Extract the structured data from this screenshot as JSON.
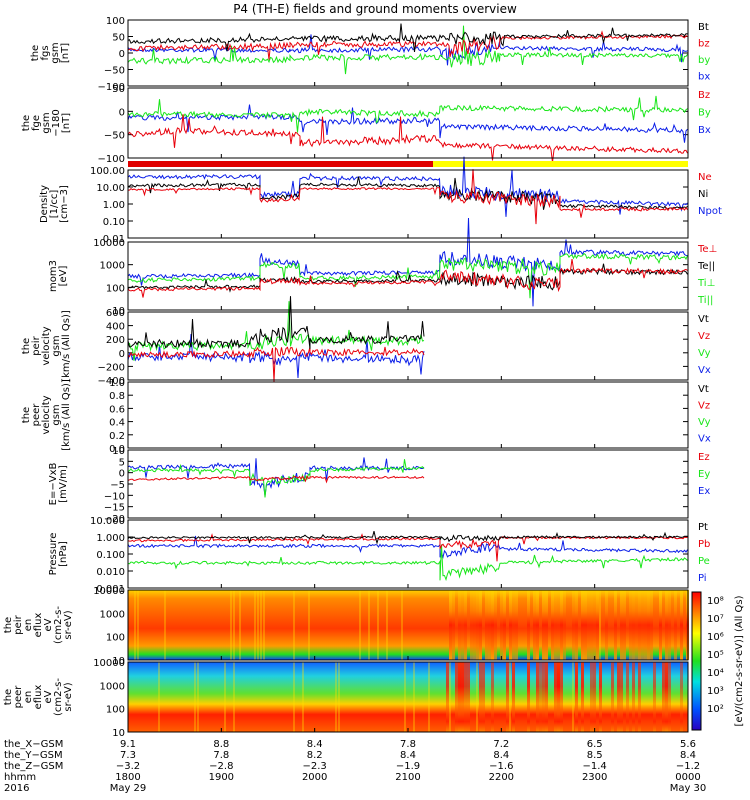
{
  "title": "P4 (TH-E) fields and ground moments overview",
  "colors": {
    "black": "#000000",
    "red": "#e8000b",
    "green": "#19e619",
    "blue": "#0b1ee8",
    "yellow": "#ffff00"
  },
  "panels": [
    {
      "id": "p1",
      "ylabel": [
        "the",
        "fgs",
        "gsm",
        "[nT]"
      ],
      "ticks": [
        "100",
        "50",
        "0",
        "−50",
        "−100"
      ],
      "legend": [
        {
          "t": "Bt",
          "c": "black"
        },
        {
          "t": "bz",
          "c": "red"
        },
        {
          "t": "by",
          "c": "green"
        },
        {
          "t": "bx",
          "c": "blue"
        }
      ]
    },
    {
      "id": "p2",
      "ylabel": [
        "the",
        "fge",
        "gsm",
        "−180",
        "[nT]"
      ],
      "ticks": [
        "50",
        "0",
        "−50",
        "−100"
      ],
      "legend": [
        {
          "t": "Bz",
          "c": "red"
        },
        {
          "t": "By",
          "c": "green"
        },
        {
          "t": "Bx",
          "c": "blue"
        }
      ]
    },
    {
      "id": "p3",
      "ylabel": [
        "Density",
        "[1/cc]",
        "[cm−3]"
      ],
      "ticks": [
        "100.00",
        "10.00",
        "1.00",
        "0.10",
        "0.01"
      ],
      "legend": [
        {
          "t": "Ne",
          "c": "red"
        },
        {
          "t": "Ni",
          "c": "black"
        },
        {
          "t": "Npot",
          "c": "blue"
        }
      ]
    },
    {
      "id": "p4",
      "ylabel": [
        "mom3",
        "[eV]"
      ],
      "ticks": [
        "10000",
        "1000",
        "100",
        "10"
      ],
      "legend": [
        {
          "t": "Te⊥",
          "c": "red"
        },
        {
          "t": "Te||",
          "c": "black"
        },
        {
          "t": "Ti⊥",
          "c": "green"
        },
        {
          "t": "Ti||",
          "c": "green"
        }
      ]
    },
    {
      "id": "p5",
      "ylabel": [
        "the",
        "peir",
        "velocity",
        "gsm",
        "[km/s (All Qs)]"
      ],
      "ticks": [
        "600",
        "400",
        "200",
        "0",
        "−200",
        "−400"
      ],
      "legend": [
        {
          "t": "Vt",
          "c": "black"
        },
        {
          "t": "Vz",
          "c": "red"
        },
        {
          "t": "Vy",
          "c": "green"
        },
        {
          "t": "Vx",
          "c": "blue"
        }
      ]
    },
    {
      "id": "p6",
      "ylabel": [
        "the",
        "peer",
        "velocity",
        "gsm",
        "[km/s (All Qs)]"
      ],
      "ticks": [
        "1.0",
        "0.8",
        "0.6",
        "0.4",
        "0.2",
        "0.0"
      ],
      "legend": [
        {
          "t": "Vt",
          "c": "black"
        },
        {
          "t": "Vz",
          "c": "red"
        },
        {
          "t": "Vy",
          "c": "green"
        },
        {
          "t": "Vx",
          "c": "blue"
        }
      ]
    },
    {
      "id": "p7",
      "ylabel": [
        "E=−VxB",
        "[mV/m]"
      ],
      "ticks": [
        "10",
        "5",
        "0",
        "−5",
        "−10",
        "−15",
        "−20"
      ],
      "legend": [
        {
          "t": "Ez",
          "c": "red"
        },
        {
          "t": "Ey",
          "c": "green"
        },
        {
          "t": "Ex",
          "c": "blue"
        }
      ]
    },
    {
      "id": "p8",
      "ylabel": [
        "Pressure",
        "[nPa]"
      ],
      "ticks": [
        "10.000",
        "1.000",
        "0.100",
        "0.010",
        "0.001"
      ],
      "legend": [
        {
          "t": "Pt",
          "c": "black"
        },
        {
          "t": "Pb",
          "c": "red"
        },
        {
          "t": "Pe",
          "c": "green"
        },
        {
          "t": "Pi",
          "c": "blue"
        }
      ]
    },
    {
      "id": "p9",
      "ylabel": [
        "the",
        "peir",
        "en",
        "eflux",
        "eV",
        "(cm2-s-",
        "sr-eV)"
      ],
      "ticks": [
        "10000",
        "1000",
        "100",
        "10"
      ],
      "legend": []
    },
    {
      "id": "p10",
      "ylabel": [
        "the",
        "peer",
        "en",
        "eflux",
        "eV",
        "(cm2-s-",
        "sr-eV)"
      ],
      "ticks": [
        "10000",
        "1000",
        "100",
        "10"
      ],
      "legend": []
    }
  ],
  "colorbar": {
    "label": "[eV/(cm2-s-sr-eV)] (All Qs)",
    "ticks": [
      "10⁸",
      "10⁷",
      "10⁶",
      "10⁵",
      "10⁴",
      "10³",
      "10²"
    ]
  },
  "footer": {
    "rows": [
      {
        "label": "the_X−GSM",
        "values": [
          "9.1",
          "8.8",
          "8.4",
          "7.8",
          "7.2",
          "6.5",
          "5.6"
        ]
      },
      {
        "label": "the_Y−GSM",
        "values": [
          "7.3",
          "7.8",
          "8.2",
          "8.4",
          "8.4",
          "8.5",
          "8.4"
        ]
      },
      {
        "label": "the_Z−GSM",
        "values": [
          "−3.2",
          "−2.8",
          "−2.3",
          "−1.9",
          "−1.6",
          "−1.4",
          "−1.2"
        ]
      },
      {
        "label": "hhmm",
        "values": [
          "1800",
          "1900",
          "2000",
          "2100",
          "2200",
          "2300",
          "0000"
        ]
      }
    ],
    "year": "2016",
    "date_start": "May 29",
    "date_end": "May 30"
  },
  "chart_data": {
    "type": "line",
    "title": "P4 (TH-E) fields and ground moments overview",
    "x_times": [
      "1800",
      "1900",
      "2000",
      "2100",
      "2200",
      "2300",
      "0000"
    ],
    "panels": [
      {
        "name": "the fgs gsm",
        "ylim": [
          -100,
          100
        ],
        "series": [
          {
            "name": "Bt",
            "values": [
              35,
              40,
              45,
              42,
              38,
              50,
              55
            ]
          },
          {
            "name": "bz",
            "values": [
              15,
              20,
              28,
              30,
              20,
              45,
              50
            ]
          },
          {
            "name": "by",
            "values": [
              -20,
              -25,
              -20,
              -15,
              -20,
              -10,
              -5
            ]
          },
          {
            "name": "bx",
            "values": [
              10,
              15,
              10,
              5,
              10,
              12,
              8
            ]
          }
        ]
      },
      {
        "name": "the fge gsm -180",
        "ylim": [
          -120,
          50
        ],
        "series": [
          {
            "name": "Bz",
            "values": [
              -55,
              -50,
              -65,
              -60,
              -80,
              -90,
              -95
            ]
          },
          {
            "name": "By",
            "values": [
              -5,
              -10,
              0,
              -10,
              10,
              15,
              10
            ]
          },
          {
            "name": "Bx",
            "values": [
              -15,
              -10,
              -20,
              -15,
              -30,
              -40,
              -45
            ]
          }
        ]
      },
      {
        "name": "Density",
        "ylim": [
          0.01,
          100
        ],
        "log": true,
        "series": [
          {
            "name": "Ne",
            "values": [
              8,
              8,
              2,
              8,
              2,
              0.5,
              0.5
            ]
          },
          {
            "name": "Ni",
            "values": [
              15,
              15,
              3,
              12,
              5,
              0.8,
              0.7
            ]
          },
          {
            "name": "Npot",
            "values": [
              40,
              40,
              5,
              30,
              8,
              1.5,
              0.9
            ]
          }
        ]
      },
      {
        "name": "mom3",
        "ylim": [
          10,
          10000
        ],
        "log": true,
        "series": [
          {
            "name": "Te⊥",
            "values": [
              120,
              130,
              250,
              200,
              300,
              500,
              600
            ]
          },
          {
            "name": "Te||",
            "values": [
              90,
              100,
              200,
              180,
              250,
              450,
              550
            ]
          },
          {
            "name": "Ti⊥",
            "values": [
              300,
              350,
              1000,
              400,
              1200,
              2500,
              3000
            ]
          },
          {
            "name": "Ti||",
            "values": [
              250,
              300,
              900,
              350,
              1100,
              2000,
              2800
            ]
          }
        ]
      },
      {
        "name": "the peir velocity gsm",
        "ylim": [
          -400,
          600
        ],
        "series": [
          {
            "name": "Vt",
            "values": [
              150,
              160,
              300,
              180
            ]
          },
          {
            "name": "Vz",
            "values": [
              -20,
              0,
              50,
              20
            ]
          },
          {
            "name": "Vy",
            "values": [
              100,
              120,
              200,
              170
            ]
          },
          {
            "name": "Vx",
            "values": [
              -50,
              -40,
              -80,
              -60
            ]
          }
        ]
      },
      {
        "name": "E=-VxB",
        "ylim": [
          -20,
          10
        ],
        "series": [
          {
            "name": "Ez",
            "values": [
              -2,
              -1,
              -2,
              -1
            ]
          },
          {
            "name": "Ey",
            "values": [
              2,
              2,
              -5,
              3
            ]
          },
          {
            "name": "Ex",
            "values": [
              4,
              3,
              -8,
              3
            ]
          }
        ]
      },
      {
        "name": "Pressure",
        "ylim": [
          0.001,
          10
        ],
        "log": true,
        "series": [
          {
            "name": "Pt",
            "values": [
              0.9,
              1.0,
              1.0,
              1.0,
              0.8,
              1.0,
              1.0
            ]
          },
          {
            "name": "Pb",
            "values": [
              0.6,
              0.7,
              0.8,
              0.8,
              0.6,
              0.9,
              0.9
            ]
          },
          {
            "name": "Pe",
            "values": [
              0.03,
              0.03,
              0.02,
              0.03,
              0.02,
              0.03,
              0.05
            ]
          },
          {
            "name": "Pi",
            "values": [
              0.3,
              0.3,
              0.2,
              0.25,
              0.2,
              0.15,
              0.15
            ]
          }
        ]
      }
    ]
  }
}
